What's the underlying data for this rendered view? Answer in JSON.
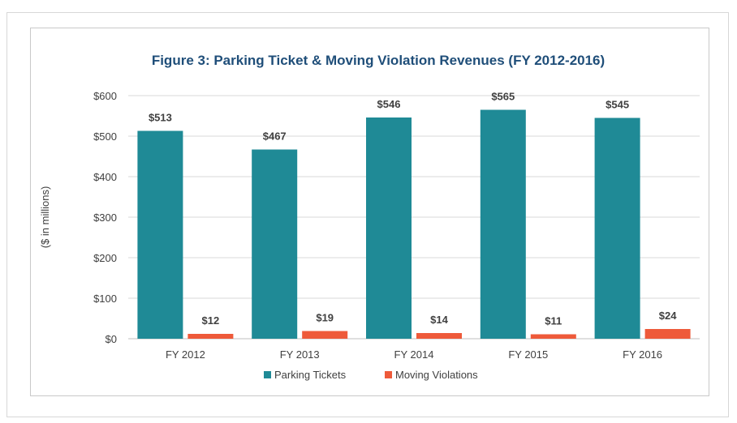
{
  "chart_data": {
    "type": "bar",
    "title": "Figure 3: Parking Ticket & Moving Violation Revenues (FY 2012-2016)",
    "xlabel": "",
    "ylabel": "($ in millions)",
    "categories": [
      "FY 2012",
      "FY 2013",
      "FY 2014",
      "FY 2015",
      "FY 2016"
    ],
    "series": [
      {
        "name": "Parking Tickets",
        "values": [
          513,
          467,
          546,
          565,
          545
        ],
        "color": "#1f8a96",
        "labels": [
          "$513",
          "$467",
          "$546",
          "$565",
          "$545"
        ]
      },
      {
        "name": "Moving Violations",
        "values": [
          12,
          19,
          14,
          11,
          24
        ],
        "color": "#ee5a3a",
        "labels": [
          "$12",
          "$19",
          "$14",
          "$11",
          "$24"
        ]
      }
    ],
    "ylim": [
      0,
      600
    ],
    "yticks": [
      0,
      100,
      200,
      300,
      400,
      500,
      600
    ],
    "ytick_labels": [
      "$0",
      "$100",
      "$200",
      "$300",
      "$400",
      "$500",
      "$600"
    ],
    "grid": true,
    "legend": "bottom",
    "colors": {
      "title": "#1f4e79",
      "grid": "#d9d9d9",
      "text": "#404040"
    }
  }
}
